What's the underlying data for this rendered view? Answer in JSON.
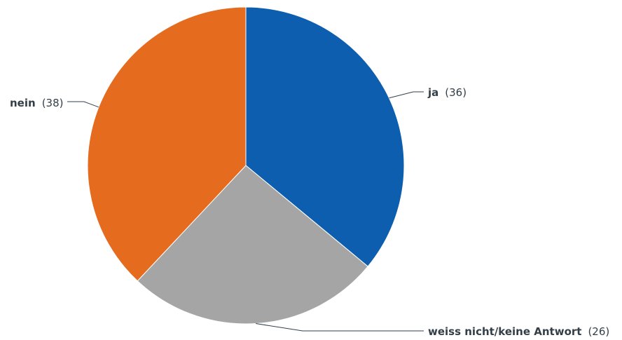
{
  "chart_data": {
    "type": "pie",
    "title": "",
    "slices": [
      {
        "label": "ja",
        "value": 36,
        "display": "(36)",
        "color": "#0d5eae"
      },
      {
        "label": "weiss nicht/keine Antwort",
        "value": 26,
        "display": "(26)",
        "color": "#a5a5a5"
      },
      {
        "label": "nein",
        "value": 38,
        "display": "(38)",
        "color": "#e56b1f"
      }
    ],
    "legend": "none",
    "labels_position": "outside with leader lines"
  }
}
